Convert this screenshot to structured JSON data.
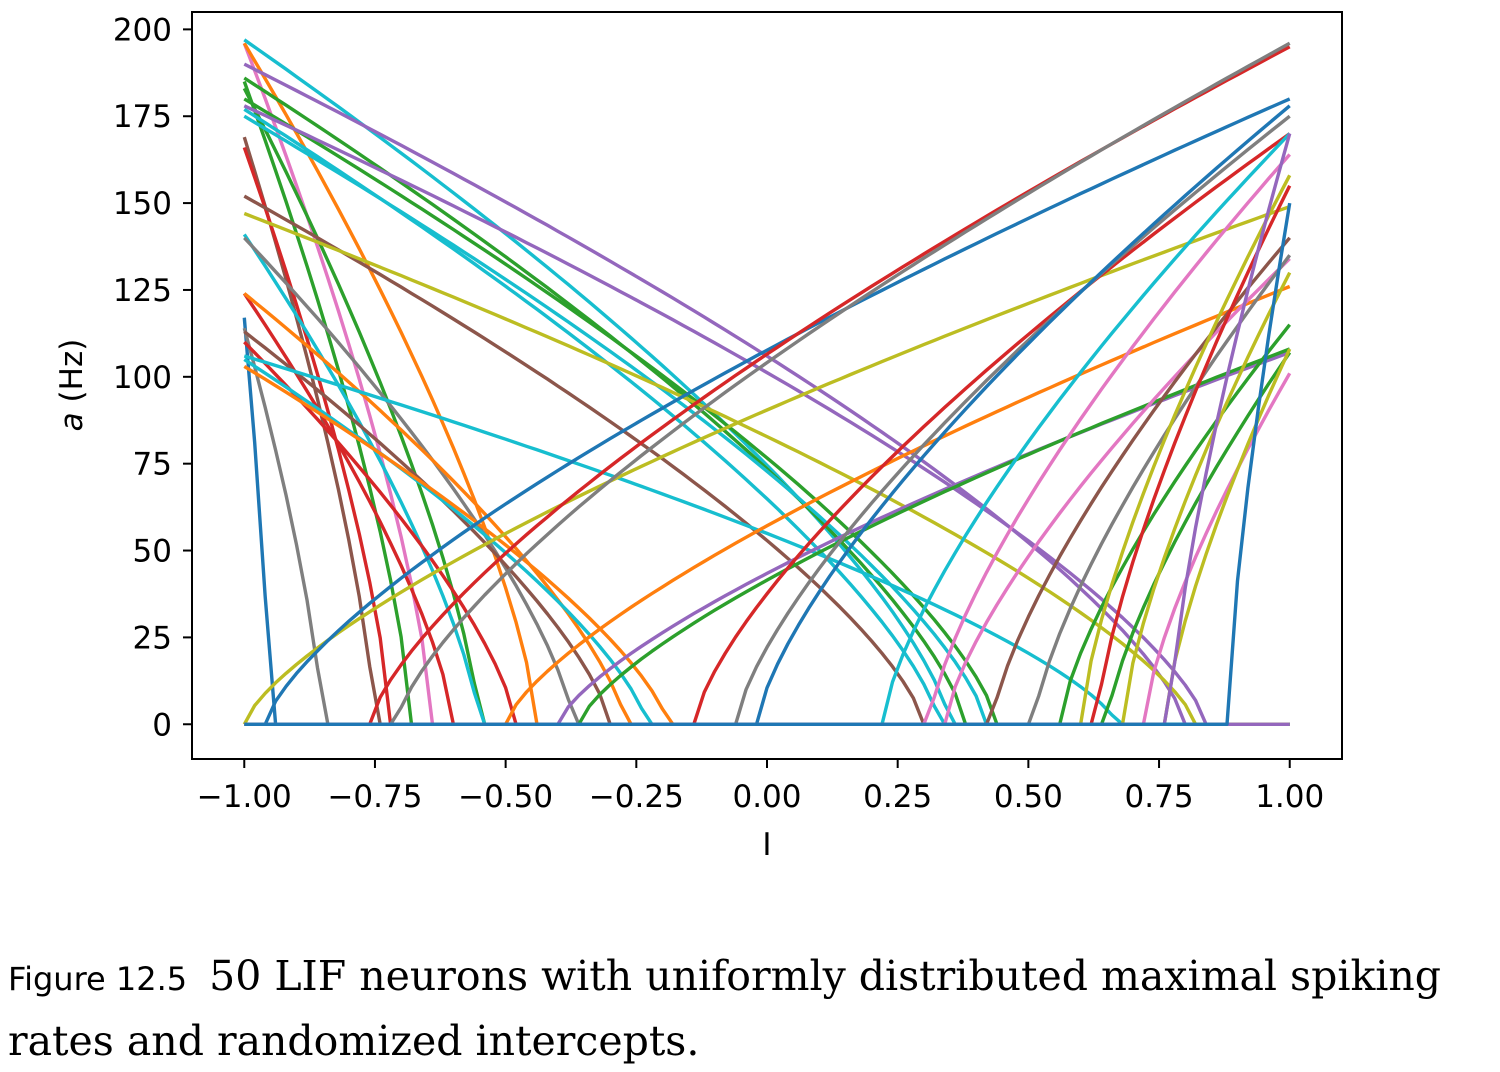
{
  "caption": {
    "label": "Figure 12.5",
    "text": "50 LIF neurons with uniformly distributed maximal spiking rates and randomized intercepts."
  },
  "chart_data": {
    "type": "line",
    "xlabel": "I",
    "ylabel": "a (Hz)",
    "ylabel_italic_part": "a",
    "ylabel_rest": " (Hz)",
    "xlim": [
      -1.1,
      1.1
    ],
    "ylim": [
      -10,
      205
    ],
    "xticks": [
      -1.0,
      -0.75,
      -0.5,
      -0.25,
      0.0,
      0.25,
      0.5,
      0.75,
      1.0
    ],
    "xtick_labels": [
      "−1.00",
      "−0.75",
      "−0.50",
      "−0.25",
      "0.00",
      "0.25",
      "0.50",
      "0.75",
      "1.00"
    ],
    "yticks": [
      0,
      25,
      50,
      75,
      100,
      125,
      150,
      175,
      200
    ],
    "ytick_labels": [
      "0",
      "25",
      "50",
      "75",
      "100",
      "125",
      "150",
      "175",
      "200"
    ],
    "grid": false,
    "series": [
      {
        "dir": "neg",
        "intercept": -0.95,
        "max_rate": 117,
        "color": "#1f77b4"
      },
      {
        "dir": "neg",
        "intercept": -0.85,
        "max_rate": 114,
        "color": "#7f7f7f"
      },
      {
        "dir": "neg",
        "intercept": -0.75,
        "max_rate": 169,
        "color": "#8c564b"
      },
      {
        "dir": "neg",
        "intercept": -0.72,
        "max_rate": 166,
        "color": "#d62728"
      },
      {
        "dir": "neg",
        "intercept": -0.68,
        "max_rate": 185,
        "color": "#2ca02c"
      },
      {
        "dir": "neg",
        "intercept": -0.64,
        "max_rate": 196,
        "color": "#e377c2"
      },
      {
        "dir": "neg",
        "intercept": -0.6,
        "max_rate": 124,
        "color": "#d62728"
      },
      {
        "dir": "neg",
        "intercept": -0.55,
        "max_rate": 183,
        "color": "#2ca02c"
      },
      {
        "dir": "neg",
        "intercept": -0.55,
        "max_rate": 141,
        "color": "#17becf"
      },
      {
        "dir": "neg",
        "intercept": -0.48,
        "max_rate": 110,
        "color": "#d62728"
      },
      {
        "dir": "neg",
        "intercept": -0.44,
        "max_rate": 196,
        "color": "#ff7f0e"
      },
      {
        "dir": "neg",
        "intercept": -0.37,
        "max_rate": 140,
        "color": "#7f7f7f"
      },
      {
        "dir": "neg",
        "intercept": -0.3,
        "max_rate": 113,
        "color": "#8c564b"
      },
      {
        "dir": "neg",
        "intercept": -0.27,
        "max_rate": 124,
        "color": "#ff7f0e"
      },
      {
        "dir": "neg",
        "intercept": -0.23,
        "max_rate": 105,
        "color": "#17becf"
      },
      {
        "dir": "neg",
        "intercept": -0.19,
        "max_rate": 103,
        "color": "#ff7f0e"
      },
      {
        "dir": "neg",
        "intercept": 0.3,
        "max_rate": 152,
        "color": "#8c564b"
      },
      {
        "dir": "neg",
        "intercept": 0.33,
        "max_rate": 177,
        "color": "#17becf"
      },
      {
        "dir": "neg",
        "intercept": 0.35,
        "max_rate": 197,
        "color": "#17becf"
      },
      {
        "dir": "neg",
        "intercept": 0.38,
        "max_rate": 186,
        "color": "#2ca02c"
      },
      {
        "dir": "neg",
        "intercept": 0.42,
        "max_rate": 175,
        "color": "#17becf"
      },
      {
        "dir": "neg",
        "intercept": 0.44,
        "max_rate": 180,
        "color": "#2ca02c"
      },
      {
        "dir": "neg",
        "intercept": 0.67,
        "max_rate": 106,
        "color": "#17becf"
      },
      {
        "dir": "neg",
        "intercept": 0.8,
        "max_rate": 190,
        "color": "#9467bd"
      },
      {
        "dir": "neg",
        "intercept": 0.82,
        "max_rate": 147,
        "color": "#bcbd22"
      },
      {
        "dir": "neg",
        "intercept": 0.84,
        "max_rate": 178,
        "color": "#9467bd"
      },
      {
        "dir": "pos",
        "intercept": -1.0,
        "max_rate": 149,
        "color": "#bcbd22"
      },
      {
        "dir": "pos",
        "intercept": -0.96,
        "max_rate": 180,
        "color": "#1f77b4"
      },
      {
        "dir": "pos",
        "intercept": -0.76,
        "max_rate": 195,
        "color": "#d62728"
      },
      {
        "dir": "pos",
        "intercept": -0.71,
        "max_rate": 196,
        "color": "#7f7f7f"
      },
      {
        "dir": "pos",
        "intercept": -0.5,
        "max_rate": 126,
        "color": "#ff7f0e"
      },
      {
        "dir": "pos",
        "intercept": -0.4,
        "max_rate": 107,
        "color": "#9467bd"
      },
      {
        "dir": "pos",
        "intercept": -0.36,
        "max_rate": 108,
        "color": "#2ca02c"
      },
      {
        "dir": "pos",
        "intercept": -0.14,
        "max_rate": 170,
        "color": "#d62728"
      },
      {
        "dir": "pos",
        "intercept": -0.06,
        "max_rate": 175,
        "color": "#7f7f7f"
      },
      {
        "dir": "pos",
        "intercept": -0.02,
        "max_rate": 178,
        "color": "#1f77b4"
      },
      {
        "dir": "pos",
        "intercept": 0.22,
        "max_rate": 170,
        "color": "#17becf"
      },
      {
        "dir": "pos",
        "intercept": 0.31,
        "max_rate": 164,
        "color": "#e377c2"
      },
      {
        "dir": "pos",
        "intercept": 0.34,
        "max_rate": 134,
        "color": "#e377c2"
      },
      {
        "dir": "pos",
        "intercept": 0.43,
        "max_rate": 140,
        "color": "#8c564b"
      },
      {
        "dir": "pos",
        "intercept": 0.51,
        "max_rate": 135,
        "color": "#7f7f7f"
      },
      {
        "dir": "pos",
        "intercept": 0.56,
        "max_rate": 115,
        "color": "#2ca02c"
      },
      {
        "dir": "pos",
        "intercept": 0.6,
        "max_rate": 158,
        "color": "#bcbd22"
      },
      {
        "dir": "pos",
        "intercept": 0.63,
        "max_rate": 155,
        "color": "#d62728"
      },
      {
        "dir": "pos",
        "intercept": 0.65,
        "max_rate": 107,
        "color": "#2ca02c"
      },
      {
        "dir": "pos",
        "intercept": 0.68,
        "max_rate": 130,
        "color": "#bcbd22"
      },
      {
        "dir": "pos",
        "intercept": 0.72,
        "max_rate": 101,
        "color": "#e377c2"
      },
      {
        "dir": "pos",
        "intercept": 0.76,
        "max_rate": 108,
        "color": "#bcbd22"
      },
      {
        "dir": "pos",
        "intercept": 0.77,
        "max_rate": 170,
        "color": "#9467bd"
      },
      {
        "dir": "pos",
        "intercept": 0.88,
        "max_rate": 150,
        "color": "#1f77b4"
      }
    ]
  }
}
